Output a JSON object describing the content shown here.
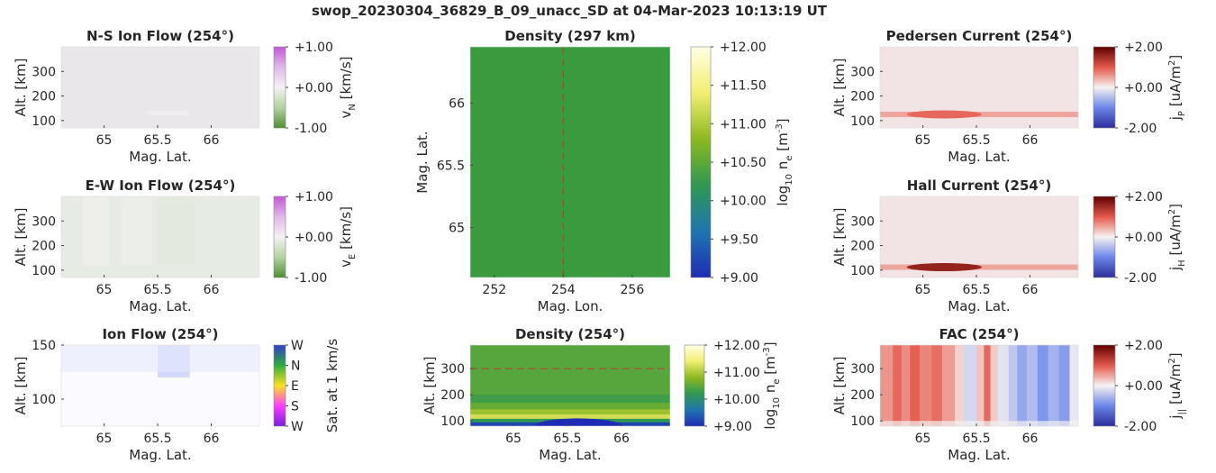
{
  "suptitle": "swop_20230304_36829_B_09_unacc_SD at 04-Mar-2023 10:13:19 UT",
  "chart_data": [
    {
      "id": "ns_ion_flow",
      "type": "heatmap",
      "title": "N-S Ion Flow (254°)",
      "xlabel": "Mag. Lat.",
      "ylabel": "Alt. [km]",
      "xlim": [
        64.6,
        66.45
      ],
      "ylim": [
        70,
        400
      ],
      "xticks": [
        65,
        65.5,
        66
      ],
      "xticklabels": [
        "65",
        "65.5",
        "66"
      ],
      "yticks": [
        100,
        200,
        300
      ],
      "yticklabels": [
        "100",
        "200",
        "300"
      ],
      "colormap": "green-white-purple",
      "background": "#e9e7ea",
      "features": [
        {
          "x": [
            65.4,
            65.8
          ],
          "y": [
            120,
            140
          ],
          "value": 0.06
        }
      ],
      "colorbar": {
        "label": "v_N [km/s]",
        "label_main": "v",
        "label_sub": "N",
        "label_unit": "[km/s]",
        "range": [
          -1,
          1
        ],
        "ticks": [
          1,
          0,
          -1
        ],
        "ticklabels": [
          "+1.00",
          "+0.00",
          "-1.00"
        ]
      }
    },
    {
      "id": "ew_ion_flow",
      "type": "heatmap",
      "title": "E-W Ion Flow (254°)",
      "xlabel": "Mag. Lat.",
      "ylabel": "Alt. [km]",
      "xlim": [
        64.6,
        66.45
      ],
      "ylim": [
        70,
        400
      ],
      "xticks": [
        65,
        65.5,
        66
      ],
      "xticklabels": [
        "65",
        "65.5",
        "66"
      ],
      "yticks": [
        100,
        200,
        300
      ],
      "yticklabels": [
        "100",
        "200",
        "300"
      ],
      "colormap": "green-white-purple",
      "background": "#e6ebe3",
      "features": [
        {
          "x": [
            64.8,
            65.05
          ],
          "y": [
            120,
            400
          ],
          "value": -0.05
        },
        {
          "x": [
            65.15,
            65.45
          ],
          "y": [
            120,
            400
          ],
          "value": -0.06
        },
        {
          "x": [
            65.5,
            65.85
          ],
          "y": [
            120,
            400
          ],
          "value": -0.14
        }
      ],
      "colorbar": {
        "label": "v_E [km/s]",
        "label_main": "v",
        "label_sub": "E",
        "label_unit": "[km/s]",
        "range": [
          -1,
          1
        ],
        "ticks": [
          1,
          0,
          -1
        ],
        "ticklabels": [
          "+1.00",
          "+0.00",
          "-1.00"
        ]
      }
    },
    {
      "id": "ion_flow_dir",
      "type": "heatmap",
      "title": "Ion Flow (254°)",
      "xlabel": "Mag. Lat.",
      "ylabel": "Alt. [km]",
      "xlim": [
        64.6,
        66.45
      ],
      "ylim": [
        75,
        150
      ],
      "xticks": [
        65,
        65.5,
        66
      ],
      "xticklabels": [
        "65",
        "65.5",
        "66"
      ],
      "yticks": [
        100,
        150
      ],
      "yticklabels": [
        "100",
        "150"
      ],
      "colormap": "direction",
      "background": "#fbfbff",
      "features": [
        {
          "x": [
            65.5,
            65.8
          ],
          "y": [
            120,
            150
          ],
          "value": 0.5
        }
      ],
      "colorbar": {
        "label": "Sat. at 1 km/s",
        "range": [
          0,
          1
        ],
        "ticks": [
          1,
          0.75,
          0.5,
          0.25,
          0
        ],
        "ticklabels": [
          "W",
          "N",
          "E",
          "S",
          "W"
        ]
      }
    },
    {
      "id": "density_map",
      "type": "heatmap",
      "title": "Density (297 km)",
      "xlabel": "Mag. Lon.",
      "ylabel": "Mag. Lat.",
      "xlim": [
        251.3,
        257.1
      ],
      "ylim": [
        64.6,
        66.45
      ],
      "xticks": [
        252,
        254,
        256
      ],
      "xticklabels": [
        "252",
        "254",
        "256"
      ],
      "yticks": [
        65,
        65.5,
        66
      ],
      "yticklabels": [
        "65",
        "65.5",
        "66"
      ],
      "colormap": "density",
      "background": "#3a9a3e",
      "reference_line": {
        "axis": "x",
        "value": 254
      },
      "colorbar": {
        "label": "log10 n_e [m^-3]",
        "label_main": "log",
        "label_sub": "10",
        "label_rest": " n",
        "label_sub2": "e",
        "label_unit": " [m",
        "label_sup": "-3",
        "label_end": "]",
        "range": [
          9,
          12
        ],
        "ticks": [
          12,
          11.5,
          11,
          10.5,
          10,
          9.5,
          9
        ],
        "ticklabels": [
          "+12.00",
          "+11.50",
          "+11.00",
          "+10.50",
          "+10.00",
          "+9.50",
          "+9.00"
        ]
      }
    },
    {
      "id": "density_profile",
      "type": "heatmap",
      "title": "Density (254°)",
      "xlabel": "Mag. Lat.",
      "ylabel": "Alt. [km]",
      "xlim": [
        64.6,
        66.45
      ],
      "ylim": [
        80,
        390
      ],
      "xticks": [
        65,
        65.5,
        66
      ],
      "xticklabels": [
        "65",
        "65.5",
        "66"
      ],
      "yticks": [
        100,
        200,
        300
      ],
      "yticklabels": [
        "100",
        "200",
        "300"
      ],
      "colormap": "density",
      "background": "#3a9a3e",
      "reference_line": {
        "axis": "y",
        "value": 300
      },
      "colorbar": {
        "label": "log10 n_e [m^-3]",
        "label_main": "log",
        "label_sub": "10",
        "label_rest": " n",
        "label_sub2": "e",
        "label_unit": " [m",
        "label_sup": "-3",
        "label_end": "]",
        "range": [
          9,
          12
        ],
        "ticks": [
          12,
          11,
          10,
          9
        ],
        "ticklabels": [
          "+12.00",
          "+11.00",
          "+10.00",
          "+9.00"
        ]
      }
    },
    {
      "id": "pedersen",
      "type": "heatmap",
      "title": "Pedersen Current (254°)",
      "xlabel": "Mag. Lat.",
      "ylabel": "Alt. [km]",
      "xlim": [
        64.6,
        66.45
      ],
      "ylim": [
        70,
        400
      ],
      "xticks": [
        65,
        65.5,
        66
      ],
      "xticklabels": [
        "65",
        "65.5",
        "66"
      ],
      "yticks": [
        100,
        200,
        300
      ],
      "yticklabels": [
        "100",
        "200",
        "300"
      ],
      "colormap": "blue-white-red",
      "background": "#f2e4e4",
      "band": {
        "altitude": 125,
        "peak": [
          65.2,
          0.9
        ]
      },
      "colorbar": {
        "label": "j_P [uA/m^2]",
        "label_main": "j",
        "label_sub": "P",
        "label_unit": " [uA/m",
        "label_sup": "2",
        "label_end": "]",
        "range": [
          -2,
          2
        ],
        "ticks": [
          2,
          0,
          -2
        ],
        "ticklabels": [
          "+2.00",
          "+0.00",
          "-2.00"
        ]
      }
    },
    {
      "id": "hall",
      "type": "heatmap",
      "title": "Hall Current (254°)",
      "xlabel": "Mag. Lat.",
      "ylabel": "Alt. [km]",
      "xlim": [
        64.6,
        66.45
      ],
      "ylim": [
        70,
        400
      ],
      "xticks": [
        65,
        65.5,
        66
      ],
      "xticklabels": [
        "65",
        "65.5",
        "66"
      ],
      "yticks": [
        100,
        200,
        300
      ],
      "yticklabels": [
        "100",
        "200",
        "300"
      ],
      "colormap": "blue-white-red",
      "background": "#f2e4e4",
      "band": {
        "altitude": 112,
        "peak": [
          65.2,
          1.6
        ]
      },
      "colorbar": {
        "label": "j_H [uA/m^2]",
        "label_main": "j",
        "label_sub": "H",
        "label_unit": " [uA/m",
        "label_sup": "2",
        "label_end": "]",
        "range": [
          -2,
          2
        ],
        "ticks": [
          2,
          0,
          -2
        ],
        "ticklabels": [
          "+2.00",
          "+0.00",
          "-2.00"
        ]
      }
    },
    {
      "id": "fac",
      "type": "heatmap",
      "title": "FAC (254°)",
      "xlabel": "Mag. Lat.",
      "ylabel": "Alt. [km]",
      "xlim": [
        64.6,
        66.45
      ],
      "ylim": [
        80,
        390
      ],
      "xticks": [
        65,
        65.5,
        66
      ],
      "xticklabels": [
        "65",
        "65.5",
        "66"
      ],
      "yticks": [
        100,
        200,
        300
      ],
      "yticklabels": [
        "100",
        "200",
        "300"
      ],
      "colormap": "blue-white-red",
      "background": "#f6eeee",
      "stripes": [
        {
          "x": [
            64.6,
            64.72
          ],
          "value": 0.6
        },
        {
          "x": [
            64.72,
            64.8
          ],
          "value": 0.9
        },
        {
          "x": [
            64.8,
            64.88
          ],
          "value": 0.65
        },
        {
          "x": [
            64.88,
            64.97
          ],
          "value": 0.95
        },
        {
          "x": [
            64.97,
            65.08
          ],
          "value": 0.7
        },
        {
          "x": [
            65.08,
            65.18
          ],
          "value": 0.85
        },
        {
          "x": [
            65.18,
            65.3
          ],
          "value": 0.55
        },
        {
          "x": [
            65.3,
            65.38
          ],
          "value": 0.2
        },
        {
          "x": [
            65.38,
            65.5
          ],
          "value": -0.25
        },
        {
          "x": [
            65.5,
            65.57
          ],
          "value": 0.3
        },
        {
          "x": [
            65.57,
            65.63
          ],
          "value": 0.9
        },
        {
          "x": [
            65.63,
            65.7
          ],
          "value": 0.25
        },
        {
          "x": [
            65.7,
            65.8
          ],
          "value": -0.15
        },
        {
          "x": [
            65.8,
            65.88
          ],
          "value": -0.4
        },
        {
          "x": [
            65.88,
            65.97
          ],
          "value": -0.7
        },
        {
          "x": [
            65.97,
            66.07
          ],
          "value": -0.5
        },
        {
          "x": [
            66.07,
            66.17
          ],
          "value": -0.85
        },
        {
          "x": [
            66.17,
            66.27
          ],
          "value": -0.6
        },
        {
          "x": [
            66.27,
            66.37
          ],
          "value": -0.8
        },
        {
          "x": [
            66.37,
            66.45
          ],
          "value": -0.1
        }
      ],
      "colorbar": {
        "label": "j_|| [uA/m^2]",
        "label_main": "j",
        "label_sub": "||",
        "label_unit": " [uA/m",
        "label_sup": "2",
        "label_end": "]",
        "range": [
          -2,
          2
        ],
        "ticks": [
          2,
          0,
          -2
        ],
        "ticklabels": [
          "+2.00",
          "+0.00",
          "-2.00"
        ]
      }
    }
  ]
}
